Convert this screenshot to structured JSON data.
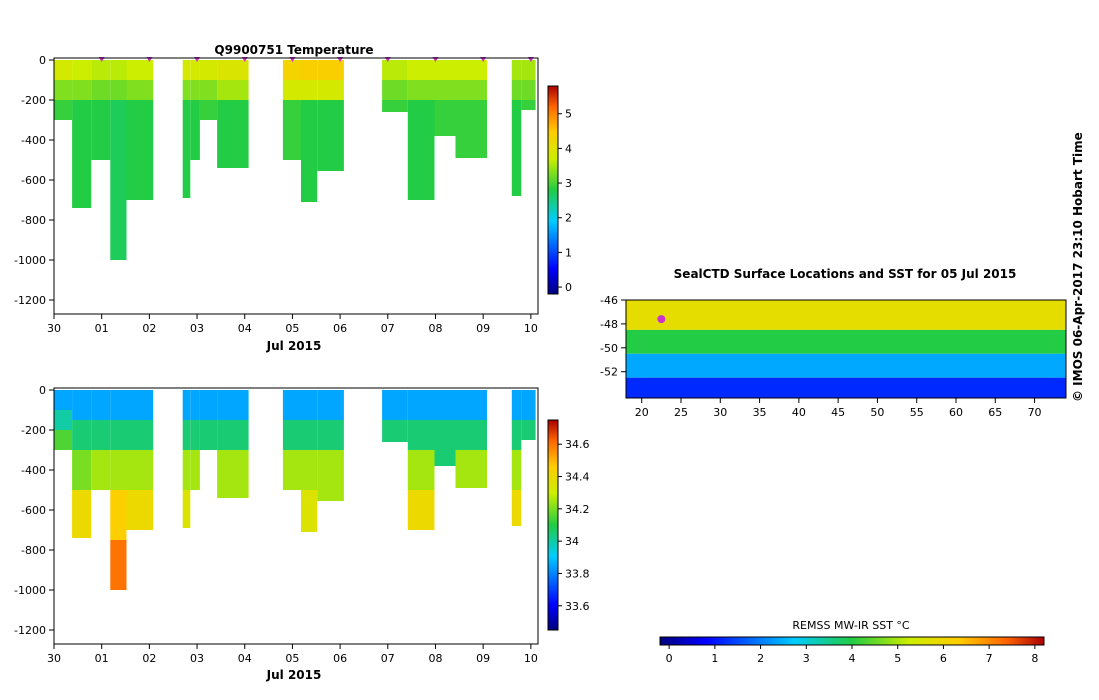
{
  "header": {
    "credit": "© IMOS 06-Apr-2017 23:10 Hobart Time"
  },
  "colors": {
    "profile_marker": "#cc33cc",
    "axis": "#000000",
    "background": "#ffffff"
  },
  "chart_data": [
    {
      "id": "temperature",
      "type": "heatmap",
      "title": "Q9900751  Temperature",
      "xlabel": "Jul 2015",
      "ylabel": "",
      "x_tick_labels": [
        "30",
        "01",
        "02",
        "03",
        "04",
        "05",
        "06",
        "07",
        "08",
        "09",
        "10"
      ],
      "y_tick_labels": [
        "0",
        "-200",
        "-400",
        "-600",
        "-800",
        "-1000",
        "-1200"
      ],
      "y_ticks": [
        0,
        -200,
        -400,
        -600,
        -800,
        -1000,
        -1200
      ],
      "ylim": [
        -1270,
        10
      ],
      "xlim": [
        0,
        10.15
      ],
      "colorbar": {
        "ticks": [
          0,
          1,
          2,
          3,
          4,
          5
        ],
        "labels": [
          "0",
          "1",
          "2",
          "3",
          "4",
          "5"
        ],
        "range": [
          -0.2,
          5.8
        ]
      },
      "profile_days": [
        1,
        2,
        3,
        4,
        5,
        6,
        7,
        8,
        9,
        10
      ],
      "profiles": [
        {
          "x0": 0.0,
          "x1": 0.38,
          "max_depth": -300,
          "layers": [
            {
              "to": -100,
              "value": 3.8
            },
            {
              "to": -200,
              "value": 3.3
            },
            {
              "to": -300,
              "value": 2.9
            }
          ]
        },
        {
          "x0": 0.38,
          "x1": 0.78,
          "max_depth": -740,
          "layers": [
            {
              "to": -100,
              "value": 3.7
            },
            {
              "to": -200,
              "value": 3.3
            },
            {
              "to": -740,
              "value": 2.8
            }
          ]
        },
        {
          "x0": 0.78,
          "x1": 1.18,
          "max_depth": -500,
          "layers": [
            {
              "to": -100,
              "value": 3.6
            },
            {
              "to": -200,
              "value": 3.2
            },
            {
              "to": -500,
              "value": 2.8
            }
          ]
        },
        {
          "x0": 1.18,
          "x1": 1.52,
          "max_depth": -1000,
          "layers": [
            {
              "to": -100,
              "value": 3.6
            },
            {
              "to": -200,
              "value": 3.2
            },
            {
              "to": -1000,
              "value": 2.7
            }
          ]
        },
        {
          "x0": 1.52,
          "x1": 2.08,
          "max_depth": -700,
          "layers": [
            {
              "to": -100,
              "value": 3.7
            },
            {
              "to": -200,
              "value": 3.3
            },
            {
              "to": -700,
              "value": 2.8
            }
          ]
        },
        {
          "x0": 2.7,
          "x1": 2.86,
          "max_depth": -690,
          "layers": [
            {
              "to": -100,
              "value": 3.8
            },
            {
              "to": -200,
              "value": 3.3
            },
            {
              "to": -690,
              "value": 2.8
            }
          ]
        },
        {
          "x0": 2.86,
          "x1": 3.06,
          "max_depth": -500,
          "layers": [
            {
              "to": -100,
              "value": 3.8
            },
            {
              "to": -200,
              "value": 3.3
            },
            {
              "to": -500,
              "value": 2.8
            }
          ]
        },
        {
          "x0": 3.06,
          "x1": 3.42,
          "max_depth": -300,
          "layers": [
            {
              "to": -100,
              "value": 3.8
            },
            {
              "to": -200,
              "value": 3.3
            },
            {
              "to": -300,
              "value": 2.9
            }
          ]
        },
        {
          "x0": 3.42,
          "x1": 4.08,
          "max_depth": -540,
          "layers": [
            {
              "to": -100,
              "value": 3.9
            },
            {
              "to": -200,
              "value": 3.5
            },
            {
              "to": -540,
              "value": 2.8
            }
          ]
        },
        {
          "x0": 4.8,
          "x1": 5.18,
          "max_depth": -500,
          "layers": [
            {
              "to": -100,
              "value": 4.3
            },
            {
              "to": -200,
              "value": 3.8
            },
            {
              "to": -500,
              "value": 2.9
            }
          ]
        },
        {
          "x0": 5.18,
          "x1": 5.52,
          "max_depth": -710,
          "layers": [
            {
              "to": -100,
              "value": 4.4
            },
            {
              "to": -200,
              "value": 3.8
            },
            {
              "to": -710,
              "value": 2.8
            }
          ]
        },
        {
          "x0": 5.52,
          "x1": 6.08,
          "max_depth": -555,
          "layers": [
            {
              "to": -100,
              "value": 4.4
            },
            {
              "to": -200,
              "value": 3.8
            },
            {
              "to": -555,
              "value": 2.8
            }
          ]
        },
        {
          "x0": 6.88,
          "x1": 7.42,
          "max_depth": -260,
          "layers": [
            {
              "to": -100,
              "value": 3.6
            },
            {
              "to": -200,
              "value": 3.2
            },
            {
              "to": -260,
              "value": 2.9
            }
          ]
        },
        {
          "x0": 7.42,
          "x1": 7.98,
          "max_depth": -700,
          "layers": [
            {
              "to": -100,
              "value": 3.7
            },
            {
              "to": -200,
              "value": 3.3
            },
            {
              "to": -700,
              "value": 2.8
            }
          ]
        },
        {
          "x0": 7.98,
          "x1": 8.42,
          "max_depth": -380,
          "layers": [
            {
              "to": -100,
              "value": 3.7
            },
            {
              "to": -200,
              "value": 3.3
            },
            {
              "to": -380,
              "value": 2.9
            }
          ]
        },
        {
          "x0": 8.42,
          "x1": 9.08,
          "max_depth": -490,
          "layers": [
            {
              "to": -100,
              "value": 3.7
            },
            {
              "to": -200,
              "value": 3.3
            },
            {
              "to": -490,
              "value": 2.9
            }
          ]
        },
        {
          "x0": 9.6,
          "x1": 9.8,
          "max_depth": -680,
          "layers": [
            {
              "to": -100,
              "value": 3.5
            },
            {
              "to": -200,
              "value": 3.2
            },
            {
              "to": -680,
              "value": 2.8
            }
          ]
        },
        {
          "x0": 9.8,
          "x1": 10.1,
          "max_depth": -250,
          "layers": [
            {
              "to": -100,
              "value": 3.5
            },
            {
              "to": -200,
              "value": 3.2
            },
            {
              "to": -250,
              "value": 2.9
            }
          ]
        }
      ]
    },
    {
      "id": "salinity",
      "type": "heatmap",
      "title": "",
      "xlabel": "Jul 2015",
      "ylabel": "",
      "x_tick_labels": [
        "30",
        "01",
        "02",
        "03",
        "04",
        "05",
        "06",
        "07",
        "08",
        "09",
        "10"
      ],
      "y_tick_labels": [
        "0",
        "-200",
        "-400",
        "-600",
        "-800",
        "-1000",
        "-1200"
      ],
      "y_ticks": [
        0,
        -200,
        -400,
        -600,
        -800,
        -1000,
        -1200
      ],
      "ylim": [
        -1270,
        10
      ],
      "xlim": [
        0,
        10.15
      ],
      "colorbar": {
        "ticks": [
          33.6,
          33.8,
          34.0,
          34.2,
          34.4,
          34.6
        ],
        "labels": [
          "33.6",
          "33.8",
          "34",
          "34.2",
          "34.4",
          "34.6"
        ],
        "range": [
          33.45,
          34.75
        ]
      },
      "profiles": [
        {
          "x0": 0.0,
          "x1": 0.38,
          "max_depth": -300,
          "layers": [
            {
              "to": -100,
              "value": 33.85
            },
            {
              "to": -200,
              "value": 34.0
            },
            {
              "to": -300,
              "value": 34.15
            }
          ]
        },
        {
          "x0": 0.38,
          "x1": 0.78,
          "max_depth": -740,
          "layers": [
            {
              "to": -150,
              "value": 33.85
            },
            {
              "to": -300,
              "value": 34.05
            },
            {
              "to": -500,
              "value": 34.2
            },
            {
              "to": -740,
              "value": 34.4
            }
          ]
        },
        {
          "x0": 0.78,
          "x1": 1.18,
          "max_depth": -500,
          "layers": [
            {
              "to": -150,
              "value": 33.85
            },
            {
              "to": -300,
              "value": 34.05
            },
            {
              "to": -500,
              "value": 34.25
            }
          ]
        },
        {
          "x0": 1.18,
          "x1": 1.52,
          "max_depth": -1000,
          "layers": [
            {
              "to": -150,
              "value": 33.85
            },
            {
              "to": -300,
              "value": 34.05
            },
            {
              "to": -500,
              "value": 34.25
            },
            {
              "to": -750,
              "value": 34.45
            },
            {
              "to": -1000,
              "value": 34.6
            }
          ]
        },
        {
          "x0": 1.52,
          "x1": 2.08,
          "max_depth": -700,
          "layers": [
            {
              "to": -150,
              "value": 33.85
            },
            {
              "to": -300,
              "value": 34.05
            },
            {
              "to": -500,
              "value": 34.25
            },
            {
              "to": -700,
              "value": 34.4
            }
          ]
        },
        {
          "x0": 2.7,
          "x1": 2.86,
          "max_depth": -690,
          "layers": [
            {
              "to": -150,
              "value": 33.85
            },
            {
              "to": -300,
              "value": 34.05
            },
            {
              "to": -500,
              "value": 34.25
            },
            {
              "to": -690,
              "value": 34.35
            }
          ]
        },
        {
          "x0": 2.86,
          "x1": 3.06,
          "max_depth": -500,
          "layers": [
            {
              "to": -150,
              "value": 33.85
            },
            {
              "to": -300,
              "value": 34.05
            },
            {
              "to": -500,
              "value": 34.25
            }
          ]
        },
        {
          "x0": 3.06,
          "x1": 3.42,
          "max_depth": -300,
          "layers": [
            {
              "to": -150,
              "value": 33.85
            },
            {
              "to": -300,
              "value": 34.05
            }
          ]
        },
        {
          "x0": 3.42,
          "x1": 4.08,
          "max_depth": -540,
          "layers": [
            {
              "to": -150,
              "value": 33.85
            },
            {
              "to": -300,
              "value": 34.05
            },
            {
              "to": -540,
              "value": 34.25
            }
          ]
        },
        {
          "x0": 4.8,
          "x1": 5.18,
          "max_depth": -500,
          "layers": [
            {
              "to": -150,
              "value": 33.85
            },
            {
              "to": -300,
              "value": 34.05
            },
            {
              "to": -500,
              "value": 34.25
            }
          ]
        },
        {
          "x0": 5.18,
          "x1": 5.52,
          "max_depth": -710,
          "layers": [
            {
              "to": -150,
              "value": 33.85
            },
            {
              "to": -300,
              "value": 34.05
            },
            {
              "to": -500,
              "value": 34.25
            },
            {
              "to": -710,
              "value": 34.35
            }
          ]
        },
        {
          "x0": 5.52,
          "x1": 6.08,
          "max_depth": -555,
          "layers": [
            {
              "to": -150,
              "value": 33.85
            },
            {
              "to": -300,
              "value": 34.05
            },
            {
              "to": -555,
              "value": 34.25
            }
          ]
        },
        {
          "x0": 6.88,
          "x1": 7.42,
          "max_depth": -260,
          "layers": [
            {
              "to": -150,
              "value": 33.85
            },
            {
              "to": -260,
              "value": 34.05
            }
          ]
        },
        {
          "x0": 7.42,
          "x1": 7.98,
          "max_depth": -700,
          "layers": [
            {
              "to": -150,
              "value": 33.85
            },
            {
              "to": -300,
              "value": 34.05
            },
            {
              "to": -500,
              "value": 34.25
            },
            {
              "to": -700,
              "value": 34.4
            }
          ]
        },
        {
          "x0": 7.98,
          "x1": 8.42,
          "max_depth": -380,
          "layers": [
            {
              "to": -150,
              "value": 33.85
            },
            {
              "to": -380,
              "value": 34.05
            }
          ]
        },
        {
          "x0": 8.42,
          "x1": 9.08,
          "max_depth": -490,
          "layers": [
            {
              "to": -150,
              "value": 33.85
            },
            {
              "to": -300,
              "value": 34.05
            },
            {
              "to": -490,
              "value": 34.25
            }
          ]
        },
        {
          "x0": 9.6,
          "x1": 9.8,
          "max_depth": -680,
          "layers": [
            {
              "to": -150,
              "value": 33.85
            },
            {
              "to": -300,
              "value": 34.05
            },
            {
              "to": -500,
              "value": 34.25
            },
            {
              "to": -680,
              "value": 34.4
            }
          ]
        },
        {
          "x0": 9.8,
          "x1": 10.1,
          "max_depth": -250,
          "layers": [
            {
              "to": -150,
              "value": 33.85
            },
            {
              "to": -250,
              "value": 34.05
            }
          ]
        }
      ]
    },
    {
      "id": "sst-map",
      "type": "heatmap",
      "title": "SealCTD Surface Locations and SST for 05 Jul 2015",
      "xlabel": "",
      "ylabel": "",
      "x_tick_values": [
        20,
        25,
        30,
        35,
        40,
        45,
        50,
        55,
        60,
        65,
        70
      ],
      "x_tick_labels": [
        "20",
        "25",
        "30",
        "35",
        "40",
        "45",
        "50",
        "55",
        "60",
        "65",
        "70"
      ],
      "y_tick_values": [
        -46,
        -48,
        -50,
        -52
      ],
      "y_tick_labels": [
        "-46",
        "-48",
        "-50",
        "-52"
      ],
      "xlim": [
        18,
        74
      ],
      "ylim": [
        -54.2,
        -46
      ],
      "sst_bands": [
        {
          "lat_top": -46,
          "lat_bottom": -48.5,
          "value": 5.8
        },
        {
          "lat_top": -48.5,
          "lat_bottom": -50.5,
          "value": 4.0
        },
        {
          "lat_top": -50.5,
          "lat_bottom": -52.5,
          "value": 2.4
        },
        {
          "lat_top": -52.5,
          "lat_bottom": -54.2,
          "value": 1.2
        }
      ],
      "track_points": [
        {
          "lon": 22.5,
          "lat": -47.6
        }
      ]
    }
  ],
  "colorbar_sst": {
    "label": "REMSS MW-IR SST °C",
    "ticks": [
      0,
      1,
      2,
      3,
      4,
      5,
      6,
      7,
      8
    ],
    "labels": [
      "0",
      "1",
      "2",
      "3",
      "4",
      "5",
      "6",
      "7",
      "8"
    ],
    "range": [
      -0.2,
      8.2
    ]
  }
}
